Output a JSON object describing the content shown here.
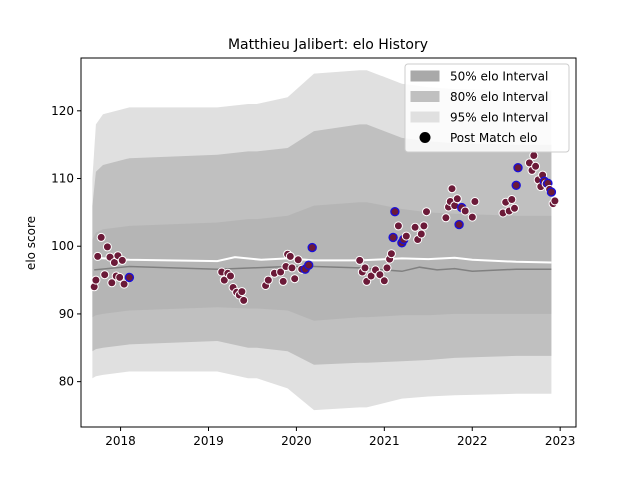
{
  "chart_data": {
    "type": "line",
    "title": "Matthieu Jalibert: elo History",
    "xlabel": "",
    "ylabel": "elo score",
    "xlim": [
      2017.55,
      2023.18
    ],
    "ylim": [
      73.3,
      127.8
    ],
    "x_ticks": [
      2018,
      2019,
      2020,
      2021,
      2022,
      2023
    ],
    "y_ticks": [
      80,
      90,
      100,
      110,
      120
    ],
    "grid": false,
    "legend_position": "top-right",
    "colors": {
      "band_50": "#a9a9a9",
      "band_80": "#c0c0c0",
      "band_95": "#e0e0e0",
      "median_line": "#808080",
      "mean_line": "#ffffff",
      "marker_fill": "#6b1a38",
      "marker_edge_default": "#ffffff",
      "marker_edge_highlight": "#1a10d8"
    },
    "legend": [
      {
        "label": "50% elo Interval",
        "kind": "band_50"
      },
      {
        "label": "80% elo Interval",
        "kind": "band_80"
      },
      {
        "label": "95% elo Interval",
        "kind": "band_95"
      },
      {
        "label": "Post Match elo",
        "kind": "marker"
      }
    ],
    "bands": {
      "x": [
        2017.68,
        2017.72,
        2017.8,
        2018.1,
        2019.1,
        2019.45,
        2019.55,
        2019.9,
        2020.2,
        2020.72,
        2020.8,
        2021.2,
        2021.5,
        2021.8,
        2022.5,
        2022.9
      ],
      "p95_low": [
        80.5,
        80.8,
        81.0,
        81.5,
        81.5,
        80.5,
        80.5,
        79.0,
        75.8,
        76.2,
        76.2,
        77.5,
        77.8,
        78.0,
        78.2,
        78.2
      ],
      "p95_high": [
        110.0,
        118.0,
        119.5,
        120.5,
        120.5,
        121.0,
        121.0,
        122.0,
        125.5,
        126.0,
        126.0,
        124.0,
        123.5,
        123.2,
        123.0,
        123.0
      ],
      "p80_low": [
        84.5,
        84.8,
        85.0,
        85.5,
        86.0,
        85.0,
        85.0,
        84.5,
        82.5,
        82.8,
        82.8,
        83.0,
        83.2,
        83.5,
        83.8,
        83.8
      ],
      "p80_high": [
        106.0,
        111.0,
        112.0,
        113.0,
        113.5,
        114.0,
        114.0,
        114.5,
        117.0,
        118.0,
        118.0,
        116.0,
        115.5,
        115.2,
        115.0,
        115.0
      ],
      "p50_low": [
        89.5,
        89.8,
        90.0,
        90.5,
        91.0,
        90.8,
        90.8,
        90.5,
        89.0,
        89.5,
        89.5,
        89.8,
        89.8,
        90.0,
        90.0,
        90.0
      ],
      "p50_high": [
        101.0,
        102.0,
        102.5,
        103.0,
        103.5,
        104.0,
        104.0,
        104.5,
        106.0,
        106.5,
        106.5,
        105.5,
        105.0,
        104.8,
        104.5,
        104.5
      ]
    },
    "series": [
      {
        "kind": "line_median",
        "x": [
          2017.7,
          2018.1,
          2019.1,
          2019.5,
          2019.9,
          2020.2,
          2020.72,
          2021.2,
          2021.4,
          2021.6,
          2021.8,
          2022.0,
          2022.5,
          2022.9
        ],
        "values": [
          96.5,
          97.0,
          96.6,
          96.8,
          97.0,
          97.0,
          96.8,
          96.3,
          96.9,
          96.5,
          96.7,
          96.3,
          96.6,
          96.6
        ]
      },
      {
        "kind": "line_mean",
        "x": [
          2017.7,
          2018.1,
          2019.1,
          2019.3,
          2019.6,
          2019.9,
          2020.2,
          2020.72,
          2021.2,
          2021.5,
          2021.8,
          2022.0,
          2022.5,
          2022.9
        ],
        "values": [
          98.3,
          98.0,
          97.8,
          98.4,
          98.0,
          98.2,
          97.9,
          97.9,
          98.2,
          98.1,
          98.3,
          98.0,
          97.7,
          97.6
        ]
      },
      {
        "kind": "markers",
        "points": [
          {
            "x": 2017.7,
            "y": 94.0,
            "h": false
          },
          {
            "x": 2017.72,
            "y": 95.0,
            "h": false
          },
          {
            "x": 2017.74,
            "y": 98.5,
            "h": false
          },
          {
            "x": 2017.78,
            "y": 101.3,
            "h": false
          },
          {
            "x": 2017.82,
            "y": 95.8,
            "h": false
          },
          {
            "x": 2017.85,
            "y": 99.9,
            "h": false
          },
          {
            "x": 2017.88,
            "y": 98.4,
            "h": false
          },
          {
            "x": 2017.9,
            "y": 94.6,
            "h": false
          },
          {
            "x": 2017.93,
            "y": 97.6,
            "h": false
          },
          {
            "x": 2017.95,
            "y": 95.6,
            "h": false
          },
          {
            "x": 2017.97,
            "y": 98.6,
            "h": false
          },
          {
            "x": 2017.99,
            "y": 95.4,
            "h": false
          },
          {
            "x": 2018.02,
            "y": 97.9,
            "h": false
          },
          {
            "x": 2018.04,
            "y": 94.4,
            "h": false
          },
          {
            "x": 2018.1,
            "y": 95.4,
            "h": true
          },
          {
            "x": 2019.15,
            "y": 96.2,
            "h": false
          },
          {
            "x": 2019.18,
            "y": 95.0,
            "h": false
          },
          {
            "x": 2019.22,
            "y": 96.0,
            "h": false
          },
          {
            "x": 2019.25,
            "y": 95.6,
            "h": false
          },
          {
            "x": 2019.28,
            "y": 93.9,
            "h": false
          },
          {
            "x": 2019.32,
            "y": 93.2,
            "h": false
          },
          {
            "x": 2019.35,
            "y": 92.8,
            "h": false
          },
          {
            "x": 2019.38,
            "y": 93.3,
            "h": false
          },
          {
            "x": 2019.4,
            "y": 92.0,
            "h": false
          },
          {
            "x": 2019.65,
            "y": 94.2,
            "h": false
          },
          {
            "x": 2019.68,
            "y": 95.0,
            "h": false
          },
          {
            "x": 2019.75,
            "y": 96.0,
            "h": false
          },
          {
            "x": 2019.82,
            "y": 96.2,
            "h": false
          },
          {
            "x": 2019.85,
            "y": 94.8,
            "h": false
          },
          {
            "x": 2019.88,
            "y": 97.0,
            "h": false
          },
          {
            "x": 2019.9,
            "y": 98.8,
            "h": false
          },
          {
            "x": 2019.93,
            "y": 98.5,
            "h": false
          },
          {
            "x": 2019.95,
            "y": 96.8,
            "h": false
          },
          {
            "x": 2019.98,
            "y": 95.2,
            "h": false
          },
          {
            "x": 2020.02,
            "y": 98.0,
            "h": false
          },
          {
            "x": 2020.06,
            "y": 96.6,
            "h": false
          },
          {
            "x": 2020.1,
            "y": 96.6,
            "h": true
          },
          {
            "x": 2020.14,
            "y": 97.2,
            "h": true
          },
          {
            "x": 2020.18,
            "y": 99.8,
            "h": true
          },
          {
            "x": 2020.72,
            "y": 97.9,
            "h": false
          },
          {
            "x": 2020.75,
            "y": 96.2,
            "h": false
          },
          {
            "x": 2020.78,
            "y": 96.8,
            "h": false
          },
          {
            "x": 2020.8,
            "y": 94.8,
            "h": false
          },
          {
            "x": 2020.85,
            "y": 95.6,
            "h": false
          },
          {
            "x": 2020.9,
            "y": 96.5,
            "h": false
          },
          {
            "x": 2020.95,
            "y": 95.8,
            "h": false
          },
          {
            "x": 2021.0,
            "y": 94.9,
            "h": false
          },
          {
            "x": 2021.03,
            "y": 96.8,
            "h": false
          },
          {
            "x": 2021.06,
            "y": 98.1,
            "h": false
          },
          {
            "x": 2021.08,
            "y": 98.9,
            "h": false
          },
          {
            "x": 2021.1,
            "y": 101.3,
            "h": true
          },
          {
            "x": 2021.12,
            "y": 105.1,
            "h": true
          },
          {
            "x": 2021.16,
            "y": 103.0,
            "h": false
          },
          {
            "x": 2021.2,
            "y": 100.5,
            "h": true
          },
          {
            "x": 2021.22,
            "y": 101.0,
            "h": true
          },
          {
            "x": 2021.25,
            "y": 101.5,
            "h": false
          },
          {
            "x": 2021.35,
            "y": 102.8,
            "h": false
          },
          {
            "x": 2021.38,
            "y": 101.0,
            "h": false
          },
          {
            "x": 2021.42,
            "y": 101.8,
            "h": false
          },
          {
            "x": 2021.45,
            "y": 103.0,
            "h": false
          },
          {
            "x": 2021.48,
            "y": 105.1,
            "h": false
          },
          {
            "x": 2021.7,
            "y": 104.2,
            "h": false
          },
          {
            "x": 2021.73,
            "y": 105.8,
            "h": false
          },
          {
            "x": 2021.75,
            "y": 106.6,
            "h": false
          },
          {
            "x": 2021.77,
            "y": 108.5,
            "h": false
          },
          {
            "x": 2021.8,
            "y": 106.0,
            "h": false
          },
          {
            "x": 2021.83,
            "y": 107.0,
            "h": false
          },
          {
            "x": 2021.85,
            "y": 103.2,
            "h": true
          },
          {
            "x": 2021.88,
            "y": 105.7,
            "h": true
          },
          {
            "x": 2021.92,
            "y": 105.2,
            "h": false
          },
          {
            "x": 2022.0,
            "y": 104.3,
            "h": false
          },
          {
            "x": 2022.03,
            "y": 106.6,
            "h": false
          },
          {
            "x": 2022.35,
            "y": 104.9,
            "h": false
          },
          {
            "x": 2022.38,
            "y": 106.5,
            "h": false
          },
          {
            "x": 2022.42,
            "y": 105.2,
            "h": false
          },
          {
            "x": 2022.45,
            "y": 106.9,
            "h": false
          },
          {
            "x": 2022.48,
            "y": 105.6,
            "h": false
          },
          {
            "x": 2022.5,
            "y": 109.0,
            "h": true
          },
          {
            "x": 2022.52,
            "y": 111.6,
            "h": true
          },
          {
            "x": 2022.65,
            "y": 112.3,
            "h": false
          },
          {
            "x": 2022.68,
            "y": 111.2,
            "h": false
          },
          {
            "x": 2022.7,
            "y": 113.4,
            "h": false
          },
          {
            "x": 2022.72,
            "y": 111.8,
            "h": false
          },
          {
            "x": 2022.75,
            "y": 109.8,
            "h": false
          },
          {
            "x": 2022.78,
            "y": 108.8,
            "h": false
          },
          {
            "x": 2022.8,
            "y": 110.5,
            "h": false
          },
          {
            "x": 2022.82,
            "y": 109.6,
            "h": true
          },
          {
            "x": 2022.84,
            "y": 109.2,
            "h": false
          },
          {
            "x": 2022.86,
            "y": 109.3,
            "h": true
          },
          {
            "x": 2022.88,
            "y": 108.4,
            "h": false
          },
          {
            "x": 2022.9,
            "y": 108.0,
            "h": true
          },
          {
            "x": 2022.92,
            "y": 106.3,
            "h": false
          },
          {
            "x": 2022.94,
            "y": 106.7,
            "h": false
          }
        ]
      }
    ]
  }
}
